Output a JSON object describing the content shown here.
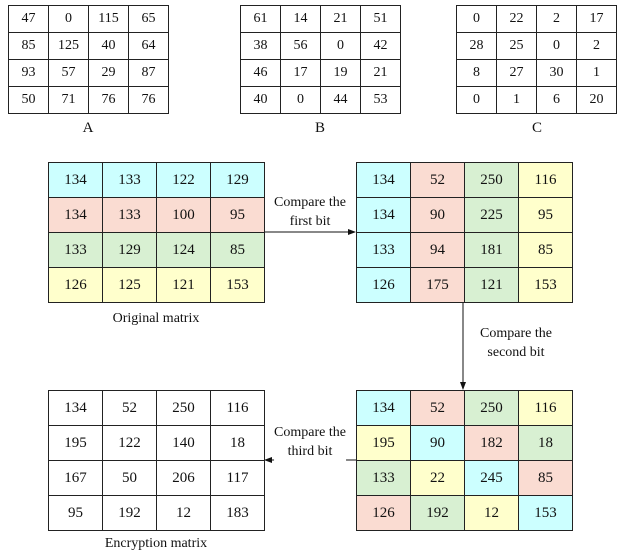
{
  "colors": {
    "c": "#ccffff",
    "p": "#fadcd2",
    "g": "#d8f0d2",
    "y": "#ffffcc"
  },
  "matrices": {
    "A": {
      "label": "A",
      "values": [
        [
          47,
          0,
          115,
          65
        ],
        [
          85,
          125,
          40,
          64
        ],
        [
          93,
          57,
          29,
          87
        ],
        [
          50,
          71,
          76,
          76
        ]
      ]
    },
    "B": {
      "label": "B",
      "values": [
        [
          61,
          14,
          21,
          51
        ],
        [
          38,
          56,
          0,
          42
        ],
        [
          46,
          17,
          19,
          21
        ],
        [
          40,
          0,
          44,
          53
        ]
      ]
    },
    "C": {
      "label": "C",
      "values": [
        [
          0,
          22,
          2,
          17
        ],
        [
          28,
          25,
          0,
          2
        ],
        [
          8,
          27,
          30,
          1
        ],
        [
          0,
          1,
          6,
          20
        ]
      ]
    },
    "original": {
      "label": "Original matrix",
      "values": [
        [
          134,
          133,
          122,
          129
        ],
        [
          134,
          133,
          100,
          95
        ],
        [
          133,
          129,
          124,
          85
        ],
        [
          126,
          125,
          121,
          153
        ]
      ],
      "colors": [
        [
          "c",
          "c",
          "c",
          "c"
        ],
        [
          "p",
          "p",
          "p",
          "p"
        ],
        [
          "g",
          "g",
          "g",
          "g"
        ],
        [
          "y",
          "y",
          "y",
          "y"
        ]
      ]
    },
    "step1": {
      "values": [
        [
          134,
          52,
          250,
          116
        ],
        [
          134,
          90,
          225,
          95
        ],
        [
          133,
          94,
          181,
          85
        ],
        [
          126,
          175,
          121,
          153
        ]
      ],
      "colors": [
        [
          "c",
          "p",
          "g",
          "y"
        ],
        [
          "c",
          "p",
          "g",
          "y"
        ],
        [
          "c",
          "p",
          "g",
          "y"
        ],
        [
          "c",
          "p",
          "g",
          "y"
        ]
      ]
    },
    "step2": {
      "values": [
        [
          134,
          52,
          250,
          116
        ],
        [
          195,
          90,
          182,
          18
        ],
        [
          133,
          22,
          245,
          85
        ],
        [
          126,
          192,
          12,
          153
        ]
      ],
      "colors": [
        [
          "c",
          "p",
          "g",
          "y"
        ],
        [
          "y",
          "c",
          "p",
          "g"
        ],
        [
          "g",
          "y",
          "c",
          "p"
        ],
        [
          "p",
          "g",
          "y",
          "c"
        ]
      ]
    },
    "encryption": {
      "label": "Encryption matrix",
      "values": [
        [
          134,
          52,
          250,
          116
        ],
        [
          195,
          122,
          140,
          18
        ],
        [
          167,
          50,
          206,
          117
        ],
        [
          95,
          192,
          12,
          183
        ]
      ]
    }
  },
  "arrows": {
    "first": [
      "Compare the",
      "first bit"
    ],
    "second": [
      "Compare the",
      "second bit"
    ],
    "third": [
      "Compare the",
      "third bit"
    ]
  }
}
